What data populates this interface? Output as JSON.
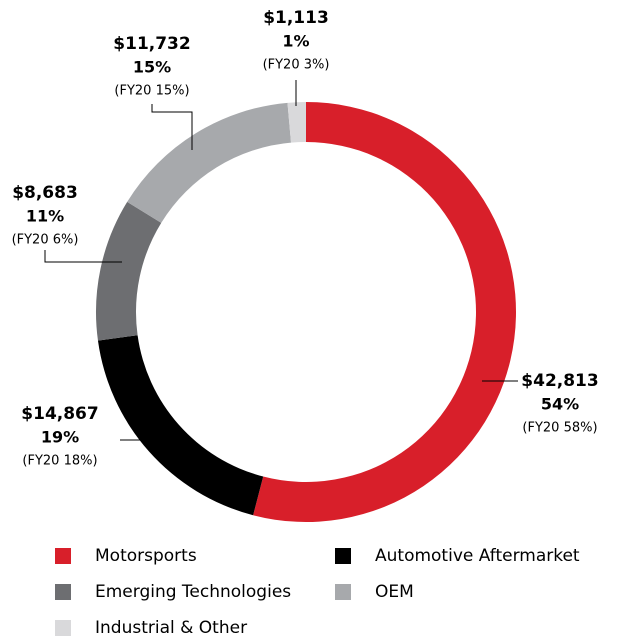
{
  "chart_data": {
    "type": "pie",
    "categories": [
      "Motorsports",
      "Automotive Aftermarket",
      "Emerging Technologies",
      "OEM",
      "Industrial & Other"
    ],
    "values": [
      42813,
      14867,
      8683,
      11732,
      1113
    ],
    "value_labels": [
      "$42,813",
      "$14,867",
      "$8,683",
      "$11,732",
      "$1,113"
    ],
    "percents": [
      {
        "value": 54,
        "label": "54%"
      },
      {
        "value": 19,
        "label": "19%"
      },
      {
        "value": 11,
        "label": "11%"
      },
      {
        "value": 15,
        "label": "15%"
      },
      {
        "value": 1,
        "label": "1%"
      }
    ],
    "fy20_labels": [
      "(FY20 58%)",
      "(FY20 18%)",
      "(FY20 6%)",
      "(FY20 15%)",
      "(FY20 3%)"
    ],
    "colors": [
      "#d81f2a",
      "#000000",
      "#6d6e71",
      "#a7a9ac",
      "#d9d9db"
    ],
    "legend": "bottom"
  }
}
